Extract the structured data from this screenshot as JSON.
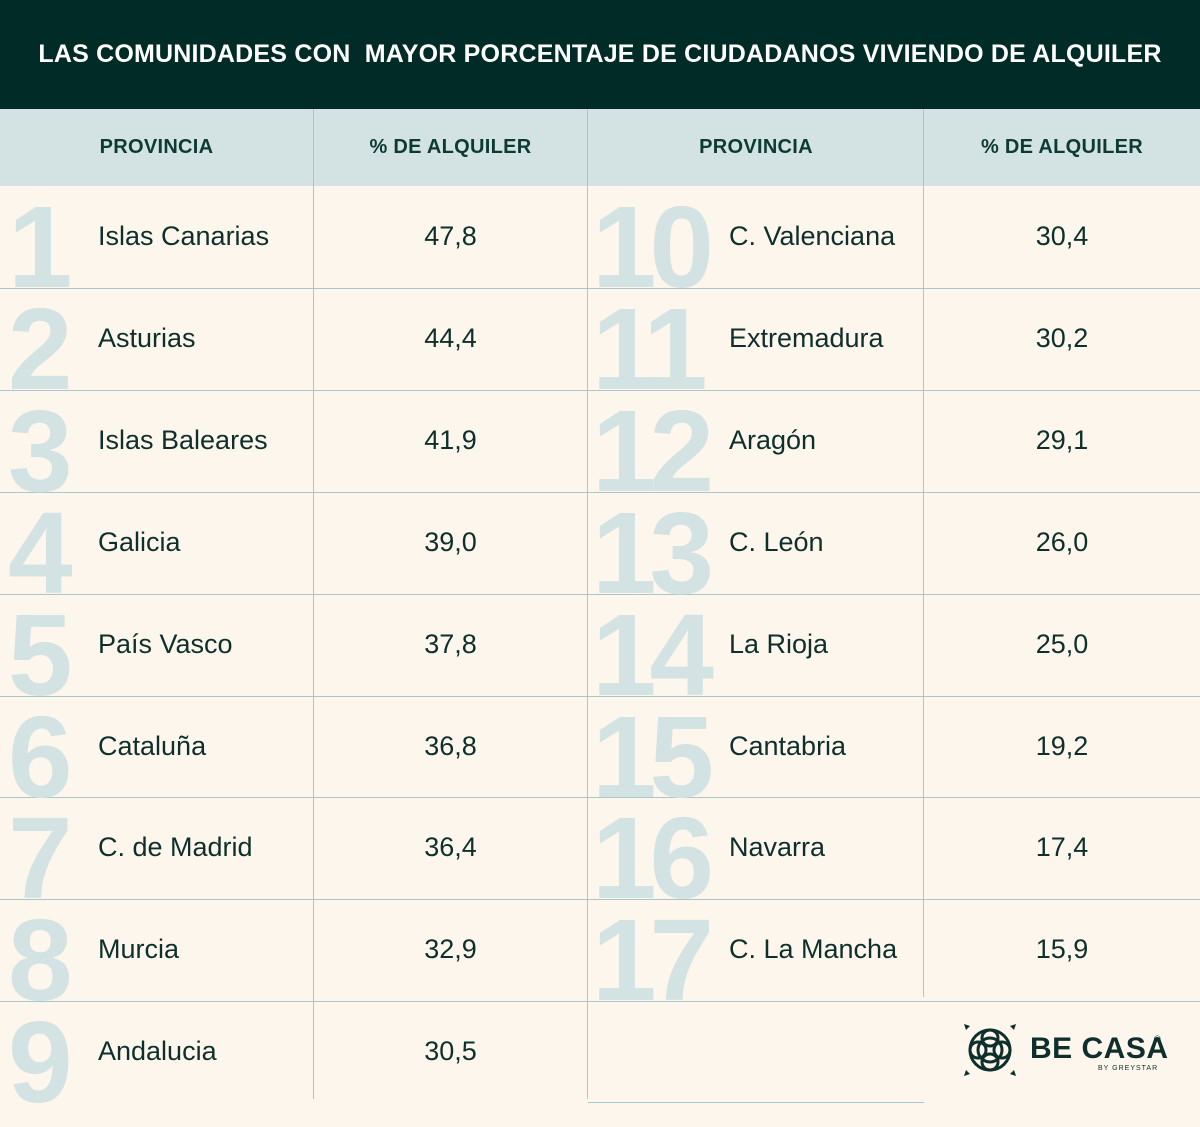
{
  "title": "LAS COMUNIDADES CON  MAYOR PORCENTAJE DE CIUDADANOS VIVIENDO DE ALQUILER",
  "headers": {
    "provincia_left": "PROVINCIA",
    "alquiler_left": "% DE ALQUILER",
    "provincia_right": "PROVINCIA",
    "alquiler_right": "% DE ALQUILER"
  },
  "chart_data": {
    "type": "table",
    "title": "LAS COMUNIDADES CON  MAYOR PORCENTAJE DE CIUDADANOS VIVIENDO DE ALQUILER",
    "columns": [
      "PROVINCIA",
      "% DE ALQUILER"
    ],
    "rows": [
      {
        "rank": "1",
        "name": "Islas Canarias",
        "value": "47,8"
      },
      {
        "rank": "2",
        "name": "Asturias",
        "value": "44,4"
      },
      {
        "rank": "3",
        "name": "Islas Baleares",
        "value": "41,9"
      },
      {
        "rank": "4",
        "name": "Galicia",
        "value": "39,0"
      },
      {
        "rank": "5",
        "name": "País Vasco",
        "value": "37,8"
      },
      {
        "rank": "6",
        "name": "Cataluña",
        "value": "36,8"
      },
      {
        "rank": "7",
        "name": "C. de Madrid",
        "value": "36,4"
      },
      {
        "rank": "8",
        "name": "Murcia",
        "value": "32,9"
      },
      {
        "rank": "9",
        "name": "Andalucia",
        "value": "30,5"
      },
      {
        "rank": "10",
        "name": "C. Valenciana",
        "value": "30,4"
      },
      {
        "rank": "11",
        "name": "Extremadura",
        "value": "30,2"
      },
      {
        "rank": "12",
        "name": "Aragón",
        "value": "29,1"
      },
      {
        "rank": "13",
        "name": "C. León",
        "value": "26,0"
      },
      {
        "rank": "14",
        "name": "La Rioja",
        "value": "25,0"
      },
      {
        "rank": "15",
        "name": "Cantabria",
        "value": "19,2"
      },
      {
        "rank": "16",
        "name": "Navarra",
        "value": "17,4"
      },
      {
        "rank": "17",
        "name": "C. La Mancha",
        "value": "15,9"
      }
    ]
  },
  "logo": {
    "name": "BE CASA",
    "subtitle": "BY GREYSTAR",
    "registered": "®"
  },
  "colors": {
    "title_bg": "#002b26",
    "header_bg": "#d3e2e3",
    "body_bg": "#fdf6ec",
    "rank_number": "#d3e2e3",
    "text": "#0e2f2b"
  }
}
